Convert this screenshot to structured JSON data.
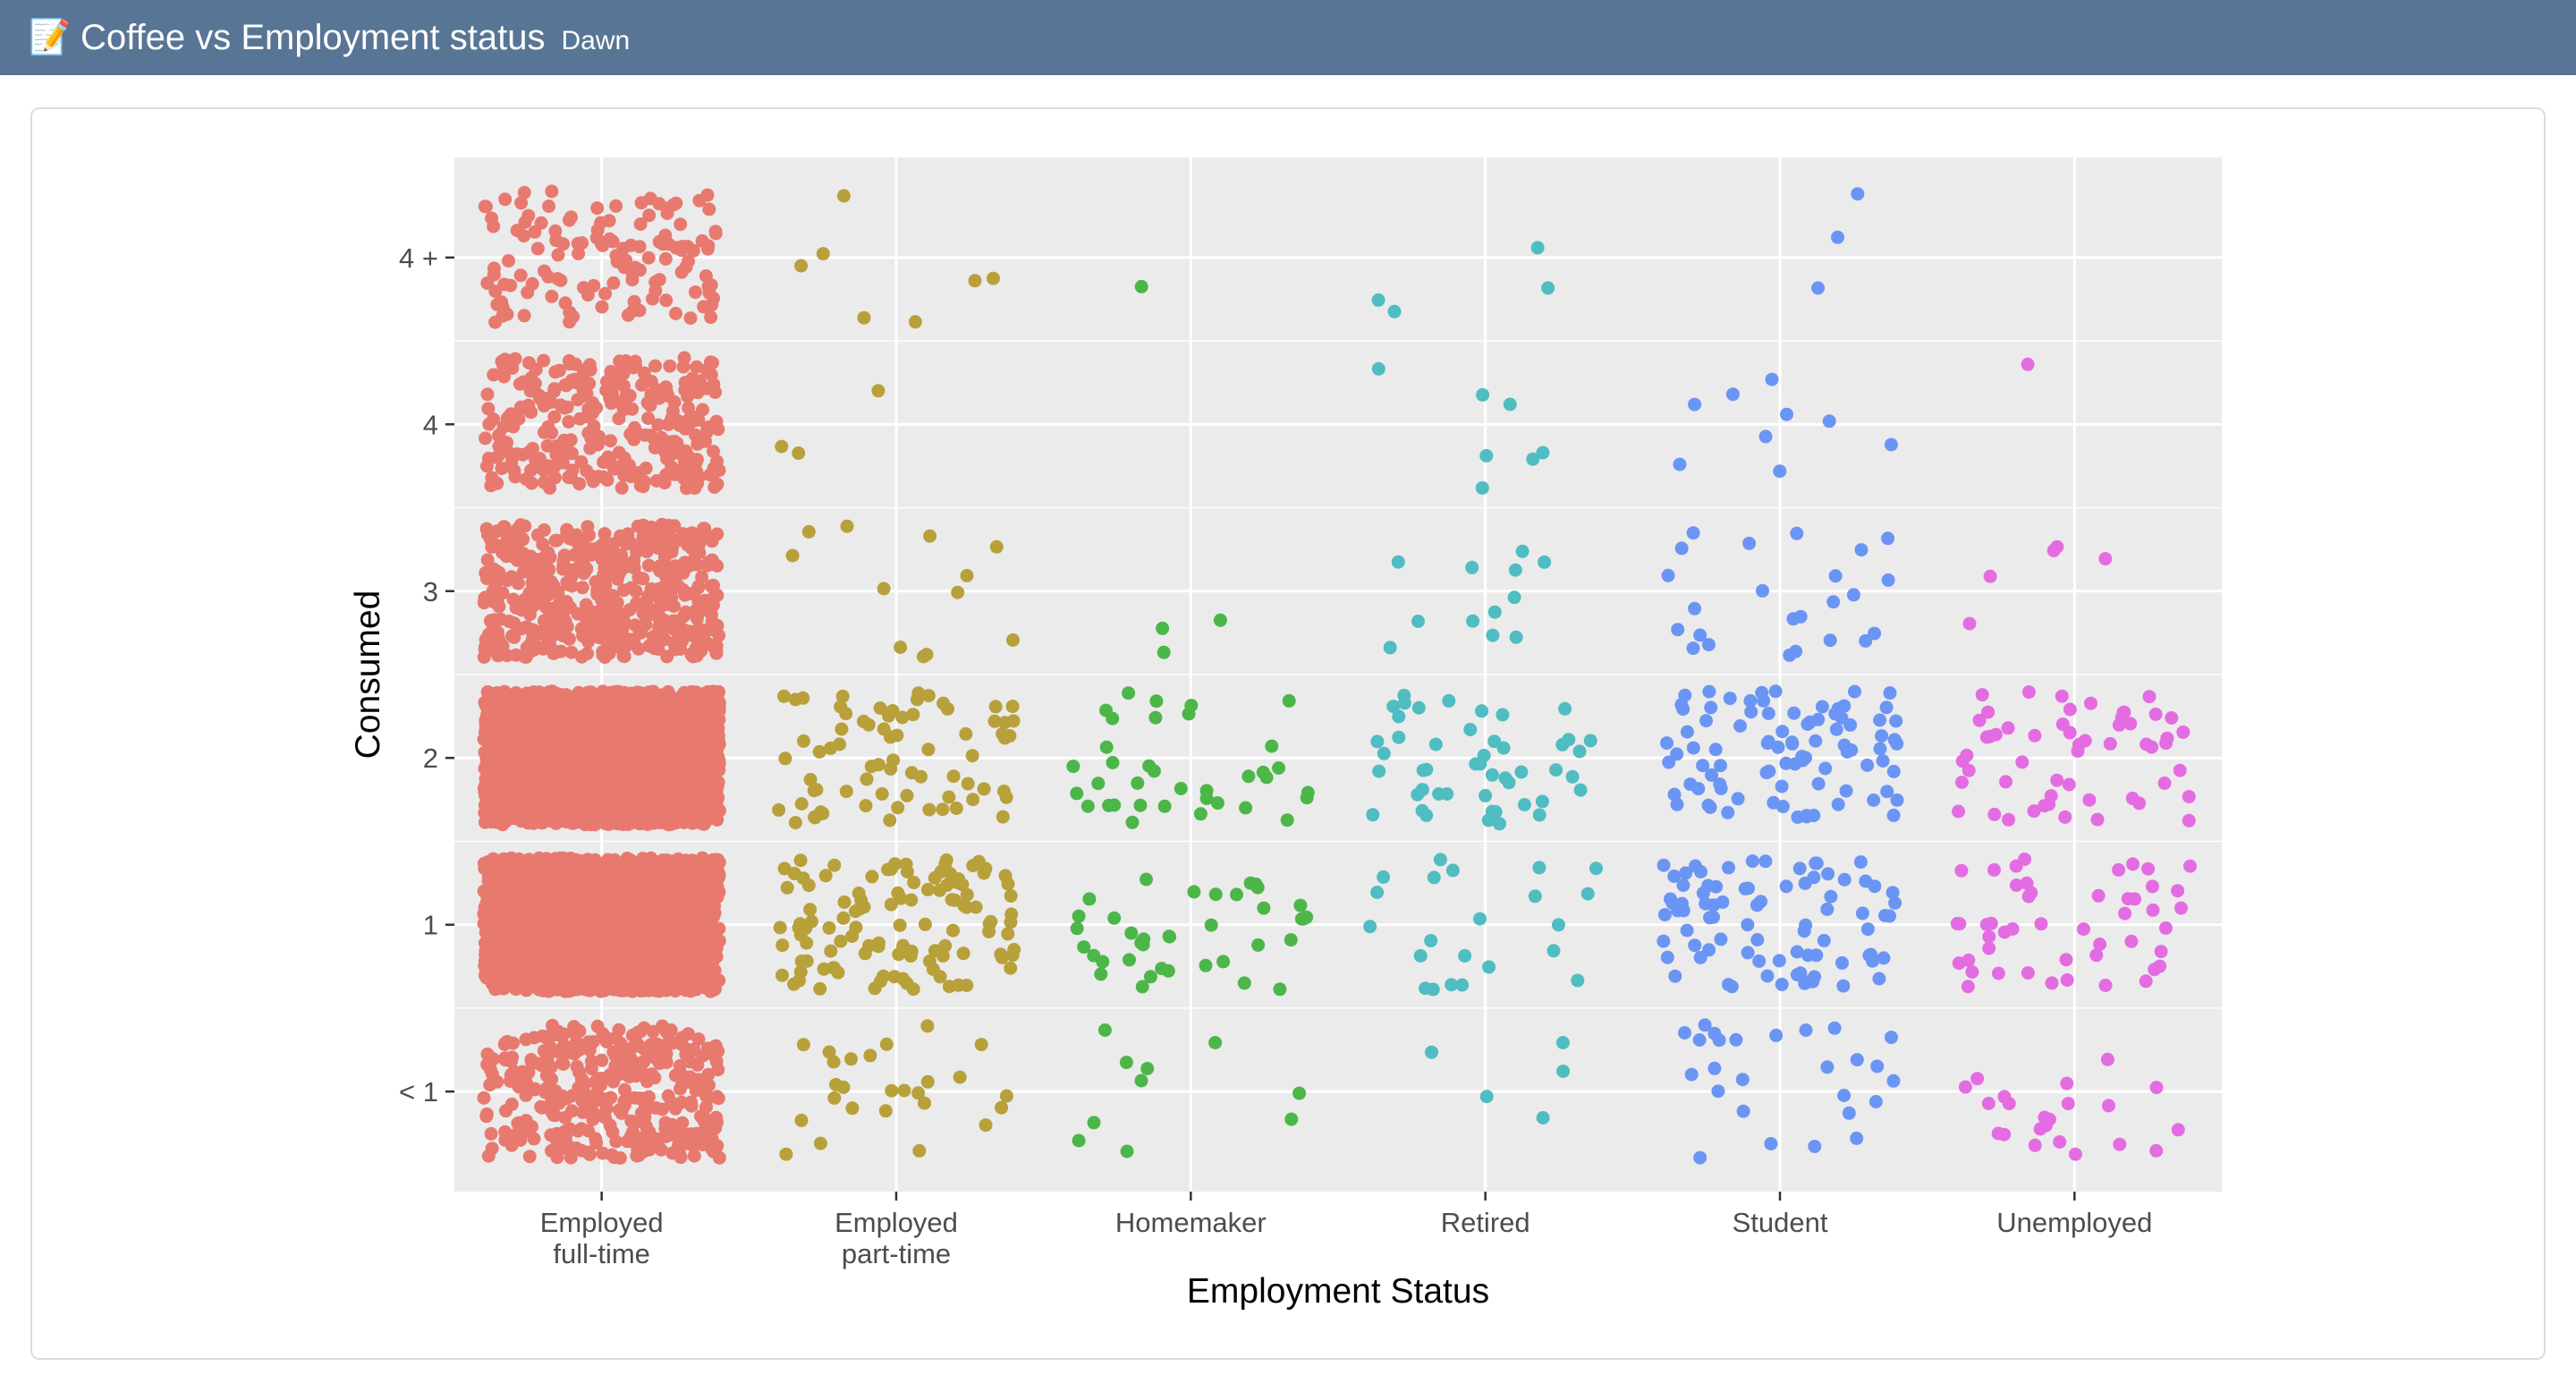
{
  "header": {
    "icon": "memo-icon",
    "title": "Coffee vs Employment status",
    "author": "Dawn",
    "background": "#587596"
  },
  "chart_data": {
    "type": "scatter",
    "title": "",
    "xlabel": "Employment Status",
    "ylabel": "Consumed",
    "panel_background": "#ebebeb",
    "grid": true,
    "jitter": true,
    "categories": [
      "Employed\nfull-time",
      "Employed\npart-time",
      "Homemaker",
      "Retired",
      "Student",
      "Unemployed"
    ],
    "x_tick_labels": [
      [
        "Employed",
        "full-time"
      ],
      [
        "Employed",
        "part-time"
      ],
      [
        "Homemaker"
      ],
      [
        "Retired"
      ],
      [
        "Student"
      ],
      [
        "Unemployed"
      ]
    ],
    "y_levels": [
      "< 1",
      "1",
      "2",
      "3",
      "4",
      "4 +"
    ],
    "ylim": [
      -0.6,
      5.6
    ],
    "series": [
      {
        "name": "Employed full-time",
        "color": "#e8796f",
        "counts": [
          350,
          1800,
          2400,
          520,
          300,
          130
        ]
      },
      {
        "name": "Employed part-time",
        "color": "#b8a03a",
        "counts": [
          26,
          115,
          72,
          12,
          3,
          7
        ]
      },
      {
        "name": "Homemaker",
        "color": "#4cb649",
        "counts": [
          10,
          38,
          36,
          3,
          0,
          1
        ]
      },
      {
        "name": "Retired",
        "color": "#4fbdc1",
        "counts": [
          5,
          22,
          48,
          12,
          7,
          4
        ]
      },
      {
        "name": "Student",
        "color": "#6b95f5",
        "counts": [
          26,
          82,
          88,
          24,
          9,
          3
        ]
      },
      {
        "name": "Unemployed",
        "color": "#e46ce2",
        "counts": [
          22,
          48,
          55,
          5,
          1,
          0
        ]
      }
    ]
  }
}
